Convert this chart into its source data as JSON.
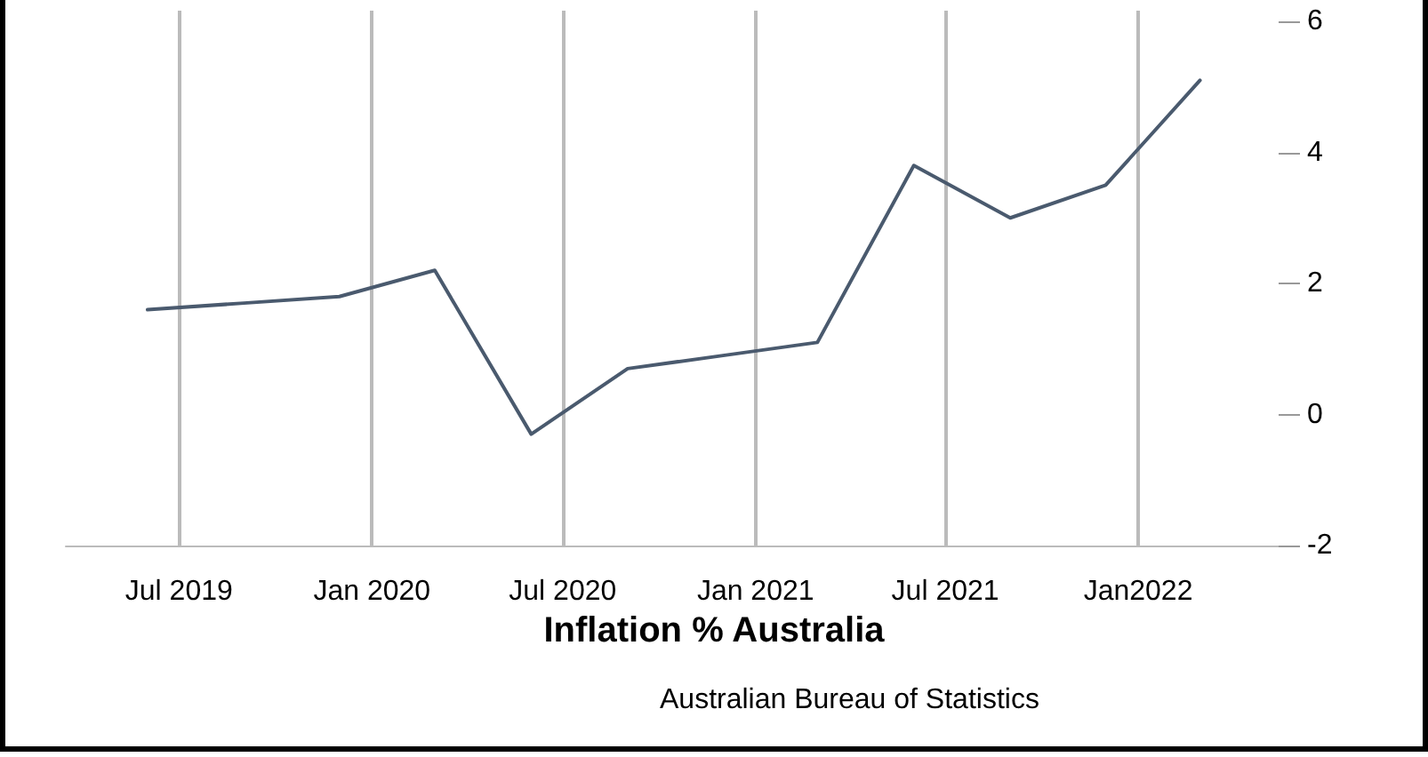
{
  "chart_data": {
    "type": "line",
    "title": "Inflation % Australia",
    "annotations": [
      "Australian Bureau of Statistics"
    ],
    "x": [
      "2019-06",
      "2019-09",
      "2019-12",
      "2020-03",
      "2020-06",
      "2020-09",
      "2020-12",
      "2021-03",
      "2021-06",
      "2021-09",
      "2021-12",
      "2022-03"
    ],
    "series": [
      {
        "color": "#4a5a6e",
        "values": [
          1.6,
          1.7,
          1.8,
          2.2,
          -0.3,
          0.7,
          0.9,
          1.1,
          3.8,
          3.0,
          3.5,
          5.1
        ]
      }
    ],
    "xticks": [
      {
        "value": "2019-07",
        "label": "Jul 2019"
      },
      {
        "value": "2020-01",
        "label": "Jan 2020"
      },
      {
        "value": "2020-07",
        "label": "Jul 2020"
      },
      {
        "value": "2021-01",
        "label": "Jan 2021"
      },
      {
        "value": "2021-07",
        "label": "Jul 2021"
      },
      {
        "value": "2022-01",
        "label": "Jan2022"
      }
    ],
    "xlim": [
      "2019-03-15",
      "2022-05-15"
    ],
    "ylim": [
      -2,
      6
    ],
    "yticks": [
      -2,
      0,
      2,
      4,
      6
    ],
    "grid": "x",
    "marker": "none",
    "line_style": "solid"
  }
}
